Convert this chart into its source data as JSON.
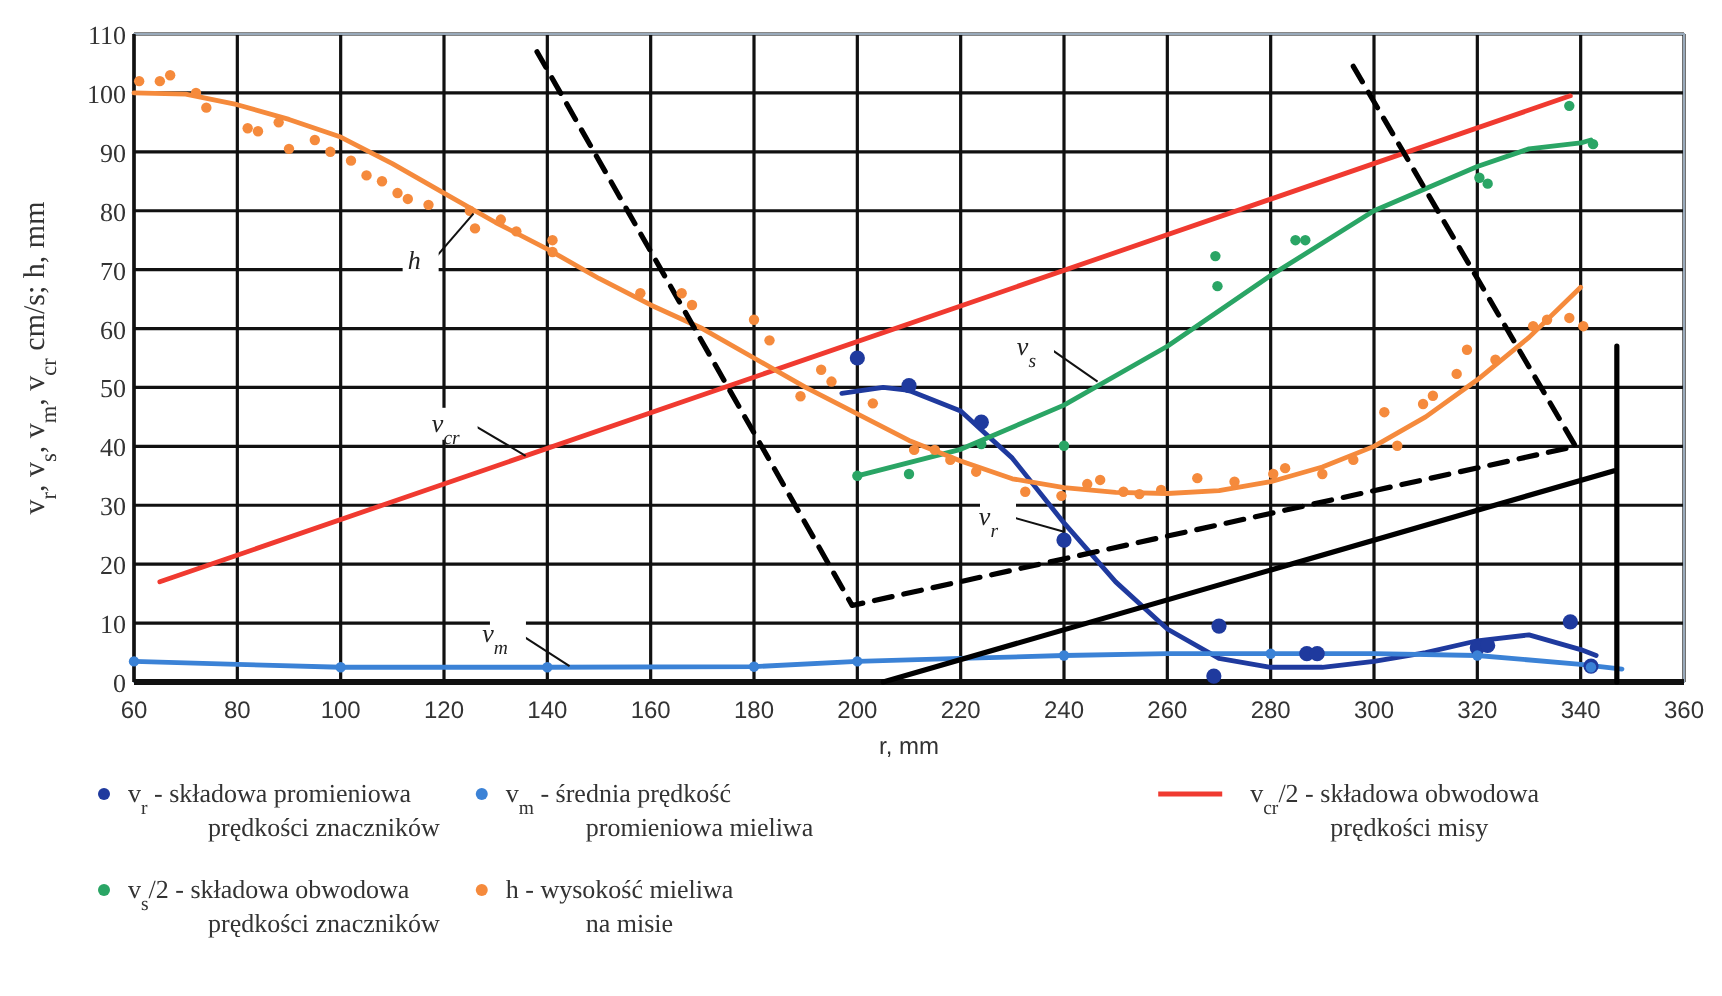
{
  "chart_data": {
    "type": "scatter",
    "xlabel": "r, mm",
    "ylabel": "v$_{r}$, v$_{s}$, v$_{m}$, v$_{cr}$ cm/s; h, mm",
    "xlim": [
      60,
      360
    ],
    "ylim": [
      0,
      110
    ],
    "xticks": [
      60,
      80,
      100,
      120,
      140,
      160,
      180,
      200,
      220,
      240,
      260,
      280,
      300,
      320,
      340,
      360
    ],
    "yticks": [
      0,
      10,
      20,
      30,
      40,
      50,
      60,
      70,
      80,
      90,
      100,
      110
    ],
    "grid": true,
    "legend": "bottom",
    "series": [
      {
        "name": "v$_{r}$ - składowa promieniowa prędkości znaczników",
        "color": "#1f3a9e",
        "x": [
          200,
          210,
          224,
          240,
          270,
          269,
          287,
          289,
          320,
          322,
          338,
          342
        ],
        "values": [
          55,
          50.3,
          44.1,
          24.1,
          9.5,
          1,
          4.8,
          4.8,
          5.8,
          6.2,
          10.2,
          2.7
        ]
      },
      {
        "name": "v$_{m}$ - średnia prędkość promieniowa mieliwa",
        "color": "#3b82d6",
        "x": [
          60,
          100,
          140,
          180,
          200,
          240,
          280,
          320,
          342
        ],
        "values": [
          3.5,
          2.5,
          2.5,
          2.6,
          3.5,
          4.5,
          4.8,
          4.5,
          2.5
        ]
      },
      {
        "name": "v$_{cr}$/2 - składowa obwodowa prędkości misy",
        "type": "line",
        "color": "#f03a30",
        "x": [
          65,
          338
        ],
        "values": [
          17,
          99.5
        ]
      },
      {
        "name": "v$_{s}$/2 - składowa obwodowa prędkości znaczników",
        "color": "#2aa565",
        "x": [
          200,
          210,
          224,
          240,
          269.3,
          269.7,
          284.8,
          286.7,
          320.4,
          322,
          337.8,
          342.4
        ],
        "values": [
          35,
          35.3,
          40.4,
          40.1,
          72.3,
          67.2,
          75,
          75,
          85.6,
          84.6,
          97.8,
          91.3
        ]
      },
      {
        "name": "h - wysokość mieliwa na misie",
        "color": "#f58a3c",
        "x": [
          61,
          65,
          67,
          72,
          74,
          82,
          84,
          88,
          90,
          95,
          98,
          102,
          105,
          108,
          111,
          113,
          117,
          125,
          126,
          131,
          134,
          141,
          141,
          158,
          166,
          168,
          180,
          183,
          189,
          193,
          195,
          203,
          211,
          215,
          218,
          223,
          232.5,
          239.5,
          244.5,
          247,
          251.5,
          254.6,
          258.8,
          265.8,
          273,
          280.5,
          282.8,
          290,
          296,
          302,
          304.5,
          309.5,
          311.4,
          316,
          318,
          323.5,
          330.8,
          333.5,
          337.8,
          340.5
        ],
        "values": [
          102,
          102,
          103,
          100,
          97.5,
          94,
          93.5,
          95,
          90.5,
          92,
          90,
          88.5,
          86,
          85,
          83,
          82,
          81,
          80,
          77,
          78.5,
          76.5,
          75,
          73,
          66,
          66,
          64,
          61.5,
          58,
          48.5,
          53,
          51,
          47.3,
          39.4,
          39.4,
          37.7,
          35.7,
          32.3,
          31.6,
          33.6,
          34.3,
          32.3,
          31.9,
          32.6,
          34.6,
          34,
          35.3,
          36.3,
          35.3,
          37.7,
          45.8,
          40.1,
          47.2,
          48.6,
          52.3,
          56.4,
          54.7,
          60.4,
          61.5,
          61.8,
          60.4
        ]
      },
      {
        "type": "line",
        "color": "#1f3a9e",
        "x": [
          197,
          205,
          210,
          220,
          230,
          240,
          250,
          260,
          270,
          280,
          290,
          300,
          310,
          320,
          330,
          340,
          343
        ],
        "values": [
          49,
          50,
          49.5,
          46,
          38,
          27,
          17,
          9,
          4,
          2.5,
          2.5,
          3.5,
          5,
          7,
          8,
          5.5,
          4.5
        ]
      },
      {
        "type": "line",
        "color": "#3b82d6",
        "x": [
          60,
          80,
          100,
          140,
          180,
          200,
          220,
          240,
          260,
          280,
          300,
          320,
          340,
          348
        ],
        "values": [
          3.5,
          3,
          2.5,
          2.5,
          2.6,
          3.5,
          4,
          4.5,
          4.8,
          4.8,
          4.8,
          4.5,
          3,
          2.2
        ]
      },
      {
        "type": "line",
        "color": "#2aa565",
        "x": [
          200,
          220,
          240,
          260,
          280,
          300,
          320,
          330,
          340,
          342
        ],
        "values": [
          35,
          39.5,
          47,
          57,
          69,
          80,
          87.5,
          90.5,
          91.5,
          92
        ]
      },
      {
        "type": "line",
        "color": "#f58a3c",
        "x": [
          60,
          70,
          80,
          90,
          100,
          110,
          120,
          130,
          140,
          150,
          160,
          170,
          180,
          190,
          200,
          210,
          220,
          230,
          240,
          250,
          260,
          270,
          280,
          290,
          300,
          310,
          320,
          330,
          340
        ],
        "values": [
          100,
          99.8,
          98,
          95.5,
          92.5,
          88,
          83,
          78,
          73.5,
          68.5,
          64,
          60,
          55,
          50,
          45.5,
          41,
          37.5,
          34.5,
          33,
          32.2,
          32,
          32.5,
          34,
          36.5,
          40,
          45,
          51.3,
          58.5,
          67
        ]
      },
      {
        "type": "line",
        "color": "#000000",
        "line_style": "dashed",
        "x": [
          138,
          199,
          339,
          295
        ],
        "values": [
          107,
          13,
          40,
          106
        ]
      },
      {
        "type": "line",
        "color": "#000000",
        "x": [
          205,
          347,
          347,
          347
        ],
        "values": [
          0,
          36,
          57,
          0
        ]
      }
    ],
    "annotations": [
      {
        "text": "h",
        "x": 125.7,
        "y": 79.5
      },
      {
        "text": "v$_{cr}$",
        "x": 135.8,
        "y": 38.4
      },
      {
        "text": "v$_{m}$",
        "x": 144.3,
        "y": 2.7
      },
      {
        "text": "v$_{s}$",
        "x": 246.5,
        "y": 51
      },
      {
        "text": "v$_{r}$",
        "x": 240,
        "y": 25.5
      }
    ]
  }
}
